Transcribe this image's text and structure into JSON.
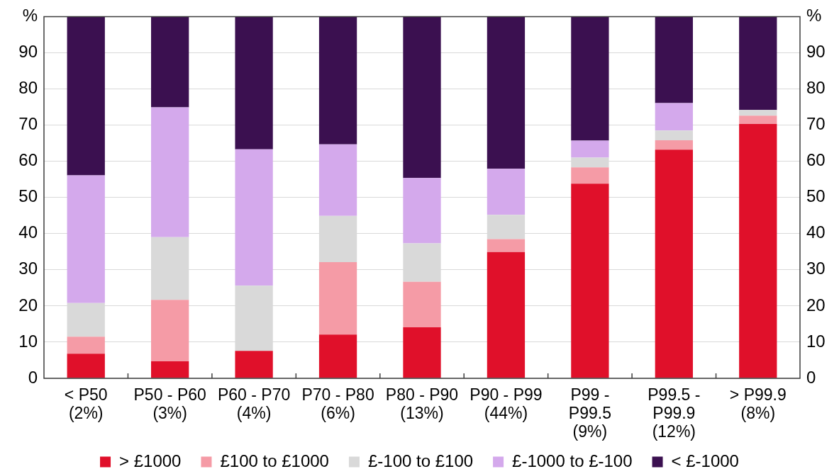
{
  "chart_data": {
    "type": "bar",
    "stacked": true,
    "categories": [
      "< P50\n(2%)",
      "P50 - P60\n(3%)",
      "P60 - P70\n(4%)",
      "P70 - P80\n(6%)",
      "P80 - P90\n(13%)",
      "P90 - P99\n(44%)",
      "P99 -\nP99.5\n(9%)",
      "P99.5 -\nP99.9\n(12%)",
      "> P99.9\n(8%)"
    ],
    "series": [
      {
        "name": "> £1000",
        "color": "#e0102a",
        "values": [
          6.8,
          4.7,
          7.6,
          12.1,
          14.1,
          34.9,
          53.8,
          63.2,
          70.3
        ]
      },
      {
        "name": "£100 to £1000",
        "color": "#f59ba6",
        "values": [
          4.7,
          17.0,
          0,
          20.0,
          12.6,
          3.6,
          4.5,
          2.6,
          2.3
        ]
      },
      {
        "name": "£-100 to £100",
        "color": "#d9d9d9",
        "values": [
          9.3,
          17.3,
          18.0,
          12.8,
          10.6,
          6.7,
          2.7,
          2.7,
          1.6
        ]
      },
      {
        "name": "£-1000 to £-100",
        "color": "#d4a9ec",
        "values": [
          35.3,
          35.9,
          37.7,
          19.8,
          18.1,
          12.7,
          4.7,
          7.6,
          0
        ]
      },
      {
        "name": "< £-1000",
        "color": "#3b1050",
        "values": [
          43.9,
          25.1,
          36.7,
          35.3,
          44.6,
          42.1,
          34.3,
          23.9,
          25.8
        ]
      }
    ],
    "ylim": [
      0,
      100
    ],
    "yticks": [
      0,
      10,
      20,
      30,
      40,
      50,
      60,
      70,
      80,
      90,
      {
        "value": 100,
        "label": "%"
      }
    ],
    "y2lim": [
      0,
      100
    ],
    "y2ticks": [
      0,
      10,
      20,
      30,
      40,
      50,
      60,
      70,
      80,
      90,
      {
        "value": 100,
        "label": "%"
      }
    ],
    "grid": "y",
    "legend": "bottom"
  }
}
